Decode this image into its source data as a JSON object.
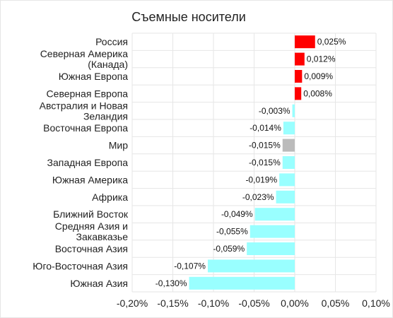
{
  "chart_data": {
    "type": "bar",
    "orientation": "horizontal",
    "title": "Съемные носители",
    "xlabel": "",
    "ylabel": "",
    "xlim": [
      -0.2,
      0.1
    ],
    "grid": true,
    "x_ticks": [
      -0.2,
      -0.15,
      -0.1,
      -0.05,
      0.0,
      0.05,
      0.1
    ],
    "x_tick_labels": [
      "-0,20%",
      "-0,15%",
      "-0,10%",
      "-0,05%",
      "0,00%",
      "0,05%",
      "0,10%"
    ],
    "categories": [
      "Россия",
      "Северная Америка (Канада)",
      "Южная Европа",
      "Северная Европа",
      "Австралия и Новая Зеландия",
      "Восточная Европа",
      "Мир",
      "Западная Европа",
      "Южная Америка",
      "Африка",
      "Ближний Восток",
      "Средняя Азия и Закавказье",
      "Восточная Азия",
      "Юго-Восточная Азия",
      "Южная Азия"
    ],
    "category_lines": [
      [
        "Россия"
      ],
      [
        "Северная Америка",
        "(Канада)"
      ],
      [
        "Южная Европа"
      ],
      [
        "Северная Европа"
      ],
      [
        "Австралия и Новая",
        "Зеландия"
      ],
      [
        "Восточная Европа"
      ],
      [
        "Мир"
      ],
      [
        "Западная Европа"
      ],
      [
        "Южная Америка"
      ],
      [
        "Африка"
      ],
      [
        "Ближний Восток"
      ],
      [
        "Средняя Азия и",
        "Закавказье"
      ],
      [
        "Восточная Азия"
      ],
      [
        "Юго-Восточная Азия"
      ],
      [
        "Южная Азия"
      ]
    ],
    "values": [
      0.025,
      0.012,
      0.009,
      0.008,
      -0.003,
      -0.014,
      -0.015,
      -0.015,
      -0.019,
      -0.023,
      -0.049,
      -0.055,
      -0.059,
      -0.107,
      -0.13
    ],
    "value_labels": [
      "0,025%",
      "0,012%",
      "0,009%",
      "0,008%",
      "-0,003%",
      "-0,014%",
      "-0,015%",
      "-0,015%",
      "-0,019%",
      "-0,023%",
      "-0,049%",
      "-0,055%",
      "-0,059%",
      "-0,107%",
      "-0,130%"
    ],
    "colors": {
      "positive": "#ff0000",
      "negative": "#99ffff",
      "world": "#bbbbbb",
      "grid": "#e6e6e6"
    }
  }
}
